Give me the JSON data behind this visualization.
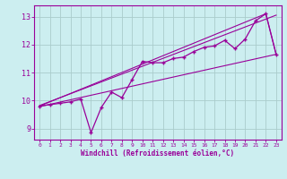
{
  "xlabel": "Windchill (Refroidissement éolien,°C)",
  "bg_color": "#cceef0",
  "line_color": "#990099",
  "grid_color": "#aacccc",
  "xlim": [
    -0.5,
    23.5
  ],
  "ylim": [
    8.6,
    13.4
  ],
  "xticks": [
    0,
    1,
    2,
    3,
    4,
    5,
    6,
    7,
    8,
    9,
    10,
    11,
    12,
    13,
    14,
    15,
    16,
    17,
    18,
    19,
    20,
    21,
    22,
    23
  ],
  "yticks": [
    9,
    10,
    11,
    12,
    13
  ],
  "line1_x": [
    0,
    1,
    2,
    3,
    4,
    5,
    6,
    7,
    8,
    9,
    10,
    11,
    12,
    13,
    14,
    15,
    16,
    17,
    18,
    19,
    20,
    21,
    22,
    23
  ],
  "line1_y": [
    9.8,
    9.85,
    9.9,
    9.95,
    10.05,
    8.85,
    9.75,
    10.3,
    10.1,
    10.75,
    11.4,
    11.35,
    11.35,
    11.5,
    11.55,
    11.75,
    11.9,
    11.95,
    12.15,
    11.85,
    12.2,
    12.85,
    13.1,
    11.65
  ],
  "line2_x": [
    0,
    23
  ],
  "line2_y": [
    9.78,
    11.65
  ],
  "line3_x": [
    0,
    23
  ],
  "line3_y": [
    9.82,
    13.05
  ],
  "line4_x": [
    0,
    22,
    23
  ],
  "line4_y": [
    9.8,
    13.1,
    11.65
  ],
  "figsize": [
    3.2,
    2.0
  ],
  "dpi": 100
}
